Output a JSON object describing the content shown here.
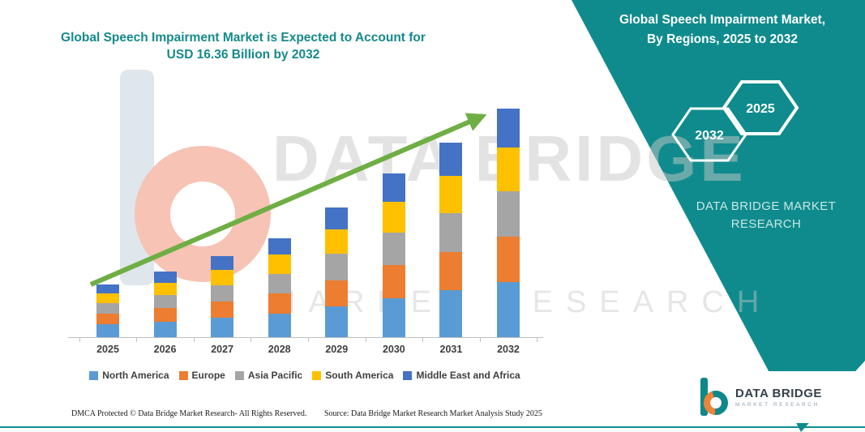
{
  "page": {
    "title_line1": "Global Speech Impairment Market is Expected to Account for",
    "title_line2": "USD 16.36 Billion by 2032",
    "title_color": "#15898B"
  },
  "side_panel": {
    "heading_line1": "Global Speech Impairment Market,",
    "heading_line2": "By Regions, 2025 to 2032",
    "hexagons": [
      {
        "label": "2032"
      },
      {
        "label": "2025"
      }
    ],
    "brand_text_line1": "DATA BRIDGE MARKET",
    "brand_text_line2": "RESEARCH",
    "panel_color": "#0F8B8D"
  },
  "watermark": {
    "big_text": "DATA BRIDGE",
    "sub_text": "MARKET RESEARCH"
  },
  "chart_data": {
    "type": "bar",
    "stacked": true,
    "title": "Global Speech Impairment Market is Expected to Account for USD 16.36 Billion by 2032",
    "unit": "USD Billion",
    "categories": [
      "2025",
      "2026",
      "2027",
      "2028",
      "2029",
      "2030",
      "2031",
      "2032"
    ],
    "series": [
      {
        "name": "North America",
        "color": "#5B9BD5",
        "values": [
          0.91,
          1.13,
          1.39,
          1.7,
          2.23,
          2.81,
          3.34,
          3.93
        ]
      },
      {
        "name": "Europe",
        "color": "#ED7D31",
        "values": [
          0.76,
          0.94,
          1.16,
          1.42,
          1.86,
          2.34,
          2.78,
          3.27
        ]
      },
      {
        "name": "Asia Pacific",
        "color": "#A5A5A5",
        "values": [
          0.76,
          0.94,
          1.16,
          1.42,
          1.86,
          2.34,
          2.78,
          3.27
        ]
      },
      {
        "name": "South America",
        "color": "#FFC000",
        "values": [
          0.72,
          0.89,
          1.1,
          1.35,
          1.77,
          2.22,
          2.64,
          3.11
        ]
      },
      {
        "name": "Middle East and Africa",
        "color": "#4472C4",
        "values": [
          0.65,
          0.8,
          0.99,
          1.21,
          1.58,
          1.99,
          2.36,
          2.78
        ]
      }
    ],
    "totals": [
      3.8,
      4.7,
      5.8,
      7.1,
      9.3,
      11.7,
      13.9,
      16.36
    ],
    "ylim": [
      0,
      16.5
    ],
    "grid": false,
    "legend_position": "bottom",
    "trend_arrow": true,
    "trend_arrow_color": "#6FAE44"
  },
  "footer": {
    "left": "DMCA Protected © Data Bridge Market Research-  All Rights Reserved.",
    "right": "Source: Data Bridge Market Research  Market Analysis Study 2025"
  },
  "logo": {
    "name_line1": "DATA BRIDGE",
    "name_line2": "MARKET RESEARCH"
  }
}
